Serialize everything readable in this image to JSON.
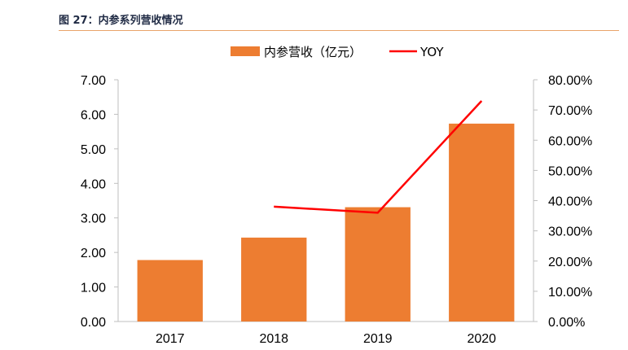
{
  "figure": {
    "title": "图 27：内参系列营收情况"
  },
  "chart_data": {
    "type": "bar",
    "title": "",
    "categories": [
      "2017",
      "2018",
      "2019",
      "2020"
    ],
    "series": [
      {
        "name": "内参营收（亿元）",
        "type": "bar",
        "axis": "left",
        "values": [
          1.78,
          2.43,
          3.31,
          5.73
        ],
        "color": "#ed7d31"
      },
      {
        "name": "YOY",
        "type": "line",
        "axis": "right",
        "values": [
          null,
          0.38,
          0.36,
          0.73
        ],
        "color": "#ff0000"
      }
    ],
    "y_left": {
      "min": 0,
      "max": 7,
      "step": 1,
      "tick_labels": [
        "0.00",
        "1.00",
        "2.00",
        "3.00",
        "4.00",
        "5.00",
        "6.00",
        "7.00"
      ]
    },
    "y_right": {
      "min": 0,
      "max": 0.8,
      "step": 0.1,
      "tick_labels": [
        "0.00%",
        "10.00%",
        "20.00%",
        "30.00%",
        "40.00%",
        "50.00%",
        "60.00%",
        "70.00%",
        "80.00%"
      ]
    },
    "grid": false,
    "legend": "top-center"
  }
}
